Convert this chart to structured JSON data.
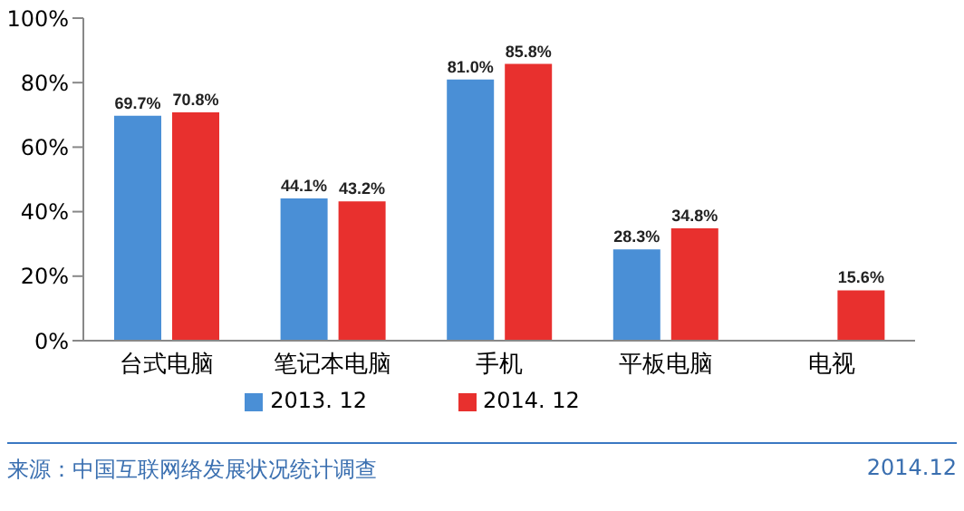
{
  "chart_data": {
    "type": "bar",
    "categories": [
      "台式电脑",
      "笔记本电脑",
      "手机",
      "平板电脑",
      "电视"
    ],
    "series": [
      {
        "name": "2013. 12",
        "color": "#4a8fd6",
        "values": [
          69.7,
          44.1,
          81.0,
          28.3,
          null
        ],
        "value_labels": [
          "69.7%",
          "44.1%",
          "81.0%",
          "28.3%",
          null
        ]
      },
      {
        "name": "2014. 12",
        "color": "#e8302e",
        "values": [
          70.8,
          43.2,
          85.8,
          34.8,
          15.6
        ],
        "value_labels": [
          "70.8%",
          "43.2%",
          "85.8%",
          "34.8%",
          "15.6%"
        ]
      }
    ],
    "ylim": [
      0,
      100
    ],
    "yticks": [
      {
        "value": 0,
        "label": "0%"
      },
      {
        "value": 20,
        "label": "20%"
      },
      {
        "value": 40,
        "label": "40%"
      },
      {
        "value": 60,
        "label": "60%"
      },
      {
        "value": 80,
        "label": "80%"
      },
      {
        "value": 100,
        "label": "100%"
      }
    ],
    "grid": false,
    "legend": "bottom",
    "annotations": [
      "来源：中国互联网络发展状况统计调查",
      "2014.12"
    ]
  }
}
